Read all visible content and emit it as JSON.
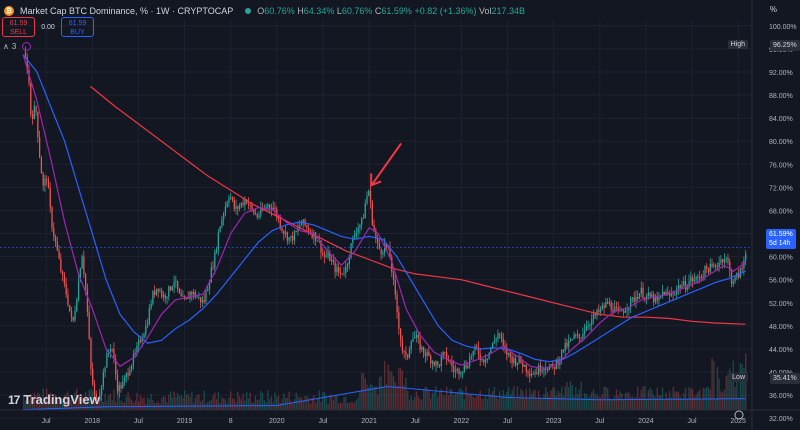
{
  "header": {
    "title": "Market Cap BTC Dominance, % · 1W · CRYPTOCAP",
    "logo_glyph": "₿",
    "ohlc": {
      "o_label": "O",
      "o": "60.76%",
      "h_label": "H",
      "h": "64.34%",
      "l_label": "L",
      "l": "60.76%",
      "c_label": "C",
      "c": "61.59%",
      "change": "+0.82 (+1.36%)",
      "vol_label": "Vol",
      "vol": "217.34B"
    },
    "scale_mode": "%"
  },
  "trade": {
    "sell_price": "61.59",
    "sell_label": "SELL",
    "spread": "0.00",
    "buy_price": "61.59",
    "buy_label": "BUY"
  },
  "indicators": {
    "label": "∧",
    "count": "3"
  },
  "price_labels": {
    "high_label": "High",
    "high_value": "96.25%",
    "low_label": "Low",
    "low_value": "35.41%",
    "current_value": "61.59%",
    "countdown": "5d 14h"
  },
  "watermark": "TradingView",
  "colors": {
    "background": "#131722",
    "up": "#26a69a",
    "down": "#ef5350",
    "ma_long": "#f23645",
    "ma_mid": "#2962ff",
    "ma_short": "#9c27b0",
    "arrow": "#f23645"
  },
  "chart_data": {
    "type": "candlestick",
    "title": "Market Cap BTC Dominance, % · 1W · CRYPTOCAP",
    "ylim": [
      31,
      101
    ],
    "y_ticks": [
      "100.00%",
      "96.00%",
      "92.00%",
      "88.00%",
      "84.00%",
      "80.00%",
      "76.00%",
      "72.00%",
      "68.00%",
      "64.00%",
      "60.00%",
      "56.00%",
      "52.00%",
      "48.00%",
      "44.00%",
      "40.00%",
      "36.00%",
      "32.00%"
    ],
    "x_ticks": [
      "Jul",
      "2018",
      "Jul",
      "2019",
      "8",
      "2020",
      "Jul",
      "2021",
      "Jul",
      "2022",
      "Jul",
      "2023",
      "Jul",
      "2024",
      "Jul",
      "2025"
    ],
    "price_path": [
      [
        2017.25,
        95.5
      ],
      [
        2017.3,
        92
      ],
      [
        2017.33,
        84
      ],
      [
        2017.38,
        86
      ],
      [
        2017.42,
        78
      ],
      [
        2017.46,
        72
      ],
      [
        2017.5,
        74
      ],
      [
        2017.55,
        66
      ],
      [
        2017.6,
        62
      ],
      [
        2017.66,
        57
      ],
      [
        2017.72,
        53
      ],
      [
        2017.78,
        48
      ],
      [
        2017.84,
        55
      ],
      [
        2017.88,
        61
      ],
      [
        2017.93,
        53
      ],
      [
        2017.98,
        40
      ],
      [
        2018.03,
        34.5
      ],
      [
        2018.08,
        37
      ],
      [
        2018.14,
        42
      ],
      [
        2018.2,
        45
      ],
      [
        2018.27,
        37
      ],
      [
        2018.33,
        38
      ],
      [
        2018.4,
        41
      ],
      [
        2018.46,
        43
      ],
      [
        2018.52,
        46
      ],
      [
        2018.58,
        48
      ],
      [
        2018.64,
        53
      ],
      [
        2018.7,
        55
      ],
      [
        2018.76,
        53
      ],
      [
        2018.82,
        54
      ],
      [
        2018.88,
        56
      ],
      [
        2018.94,
        53
      ],
      [
        2019.0,
        52
      ],
      [
        2019.06,
        54
      ],
      [
        2019.13,
        53
      ],
      [
        2019.2,
        52
      ],
      [
        2019.26,
        56
      ],
      [
        2019.32,
        60
      ],
      [
        2019.37,
        65
      ],
      [
        2019.42,
        68
      ],
      [
        2019.48,
        71
      ],
      [
        2019.54,
        68
      ],
      [
        2019.6,
        69
      ],
      [
        2019.66,
        70
      ],
      [
        2019.72,
        68
      ],
      [
        2019.78,
        67
      ],
      [
        2019.84,
        68
      ],
      [
        2019.9,
        69
      ],
      [
        2019.96,
        68.5
      ],
      [
        2020.02,
        66
      ],
      [
        2020.08,
        64
      ],
      [
        2020.14,
        63
      ],
      [
        2020.2,
        64
      ],
      [
        2020.26,
        66
      ],
      [
        2020.32,
        65
      ],
      [
        2020.38,
        64
      ],
      [
        2020.44,
        63
      ],
      [
        2020.5,
        60
      ],
      [
        2020.56,
        60
      ],
      [
        2020.62,
        58
      ],
      [
        2020.68,
        57
      ],
      [
        2020.74,
        58
      ],
      [
        2020.8,
        62
      ],
      [
        2020.86,
        65
      ],
      [
        2020.92,
        66
      ],
      [
        2020.96,
        70
      ],
      [
        2020.99,
        71.5
      ],
      [
        2021.03,
        66
      ],
      [
        2021.08,
        62
      ],
      [
        2021.12,
        61
      ],
      [
        2021.17,
        62
      ],
      [
        2021.22,
        60
      ],
      [
        2021.26,
        55
      ],
      [
        2021.3,
        50
      ],
      [
        2021.35,
        44
      ],
      [
        2021.4,
        42
      ],
      [
        2021.45,
        46
      ],
      [
        2021.5,
        46
      ],
      [
        2021.56,
        44
      ],
      [
        2021.62,
        43
      ],
      [
        2021.68,
        42
      ],
      [
        2021.74,
        41
      ],
      [
        2021.8,
        43
      ],
      [
        2021.86,
        42
      ],
      [
        2021.92,
        40
      ],
      [
        2021.98,
        40.5
      ],
      [
        2022.04,
        41
      ],
      [
        2022.1,
        43
      ],
      [
        2022.16,
        44
      ],
      [
        2022.22,
        42
      ],
      [
        2022.28,
        43
      ],
      [
        2022.34,
        45
      ],
      [
        2022.4,
        47
      ],
      [
        2022.45,
        44
      ],
      [
        2022.5,
        43
      ],
      [
        2022.56,
        42
      ],
      [
        2022.62,
        42
      ],
      [
        2022.68,
        41
      ],
      [
        2022.74,
        40
      ],
      [
        2022.8,
        40
      ],
      [
        2022.86,
        41
      ],
      [
        2022.92,
        41
      ],
      [
        2022.98,
        40.5
      ],
      [
        2023.04,
        42
      ],
      [
        2023.1,
        44
      ],
      [
        2023.16,
        45
      ],
      [
        2023.22,
        46
      ],
      [
        2023.28,
        46
      ],
      [
        2023.34,
        48
      ],
      [
        2023.4,
        49
      ],
      [
        2023.46,
        50
      ],
      [
        2023.52,
        51
      ],
      [
        2023.58,
        52
      ],
      [
        2023.64,
        51
      ],
      [
        2023.7,
        50
      ],
      [
        2023.76,
        51
      ],
      [
        2023.82,
        52
      ],
      [
        2023.88,
        53
      ],
      [
        2023.94,
        54
      ],
      [
        2024.0,
        53
      ],
      [
        2024.06,
        53
      ],
      [
        2024.12,
        52
      ],
      [
        2024.18,
        54
      ],
      [
        2024.24,
        53
      ],
      [
        2024.3,
        54
      ],
      [
        2024.36,
        55
      ],
      [
        2024.42,
        55
      ],
      [
        2024.48,
        56
      ],
      [
        2024.54,
        56
      ],
      [
        2024.6,
        57
      ],
      [
        2024.66,
        58
      ],
      [
        2024.72,
        58
      ],
      [
        2024.78,
        59
      ],
      [
        2024.84,
        60
      ],
      [
        2024.88,
        59
      ],
      [
        2024.92,
        56
      ],
      [
        2024.96,
        56
      ],
      [
        2025.0,
        57
      ],
      [
        2025.04,
        58
      ],
      [
        2025.08,
        61.59
      ]
    ],
    "ma_200": [
      [
        2017.98,
        89.5
      ],
      [
        2018.25,
        86
      ],
      [
        2018.5,
        83
      ],
      [
        2018.75,
        80
      ],
      [
        2019.0,
        77
      ],
      [
        2019.25,
        74
      ],
      [
        2019.5,
        71.5
      ],
      [
        2019.75,
        69
      ],
      [
        2020.0,
        67
      ],
      [
        2020.25,
        65
      ],
      [
        2020.5,
        63
      ],
      [
        2020.75,
        61
      ],
      [
        2021.0,
        59.5
      ],
      [
        2021.25,
        58
      ],
      [
        2021.5,
        57
      ],
      [
        2021.75,
        56.5
      ],
      [
        2022.0,
        56
      ],
      [
        2022.25,
        55
      ],
      [
        2022.5,
        54
      ],
      [
        2022.75,
        53
      ],
      [
        2023.0,
        52
      ],
      [
        2023.25,
        51
      ],
      [
        2023.5,
        50
      ],
      [
        2023.75,
        49.5
      ],
      [
        2024.0,
        49.5
      ],
      [
        2024.25,
        49.3
      ],
      [
        2024.5,
        48.8
      ],
      [
        2024.75,
        48.5
      ],
      [
        2025.08,
        48.3
      ]
    ],
    "ma_blue": [
      [
        2017.25,
        95
      ],
      [
        2017.4,
        92
      ],
      [
        2017.55,
        86
      ],
      [
        2017.7,
        80
      ],
      [
        2017.85,
        72
      ],
      [
        2018.0,
        64
      ],
      [
        2018.15,
        56
      ],
      [
        2018.3,
        50
      ],
      [
        2018.45,
        47
      ],
      [
        2018.6,
        45
      ],
      [
        2018.75,
        45.5
      ],
      [
        2018.9,
        47.5
      ],
      [
        2019.05,
        49
      ],
      [
        2019.2,
        51
      ],
      [
        2019.35,
        53.5
      ],
      [
        2019.5,
        56.5
      ],
      [
        2019.65,
        59.5
      ],
      [
        2019.8,
        62.5
      ],
      [
        2019.95,
        64.5
      ],
      [
        2020.1,
        65.5
      ],
      [
        2020.25,
        66
      ],
      [
        2020.4,
        65.5
      ],
      [
        2020.55,
        64.5
      ],
      [
        2020.7,
        63.5
      ],
      [
        2020.85,
        63
      ],
      [
        2021.0,
        63.5
      ],
      [
        2021.15,
        63
      ],
      [
        2021.3,
        60
      ],
      [
        2021.45,
        56
      ],
      [
        2021.6,
        52
      ],
      [
        2021.75,
        48
      ],
      [
        2021.9,
        45.5
      ],
      [
        2022.05,
        44.5
      ],
      [
        2022.2,
        44
      ],
      [
        2022.35,
        44.2
      ],
      [
        2022.5,
        44
      ],
      [
        2022.65,
        43.2
      ],
      [
        2022.8,
        42.2
      ],
      [
        2022.95,
        41.8
      ],
      [
        2023.1,
        42.2
      ],
      [
        2023.25,
        43.5
      ],
      [
        2023.4,
        45
      ],
      [
        2023.55,
        46.5
      ],
      [
        2023.7,
        48
      ],
      [
        2023.85,
        49.5
      ],
      [
        2024.0,
        50.5
      ],
      [
        2024.15,
        51.5
      ],
      [
        2024.3,
        52.5
      ],
      [
        2024.45,
        53.5
      ],
      [
        2024.6,
        54.5
      ],
      [
        2024.75,
        55.5
      ],
      [
        2024.9,
        56.2
      ],
      [
        2025.08,
        57.5
      ]
    ],
    "ma_purple": [
      [
        2017.25,
        95
      ],
      [
        2017.4,
        87
      ],
      [
        2017.55,
        77
      ],
      [
        2017.7,
        66
      ],
      [
        2017.85,
        57
      ],
      [
        2018.0,
        51
      ],
      [
        2018.15,
        44
      ],
      [
        2018.3,
        41
      ],
      [
        2018.45,
        42.5
      ],
      [
        2018.6,
        46
      ],
      [
        2018.75,
        50
      ],
      [
        2018.9,
        52.5
      ],
      [
        2019.05,
        53
      ],
      [
        2019.2,
        53.5
      ],
      [
        2019.35,
        58
      ],
      [
        2019.5,
        64
      ],
      [
        2019.65,
        67.5
      ],
      [
        2019.8,
        68.5
      ],
      [
        2019.95,
        68.2
      ],
      [
        2020.1,
        66
      ],
      [
        2020.25,
        64.5
      ],
      [
        2020.4,
        64
      ],
      [
        2020.55,
        61
      ],
      [
        2020.7,
        58.5
      ],
      [
        2020.85,
        61
      ],
      [
        2021.0,
        65
      ],
      [
        2021.1,
        64
      ],
      [
        2021.25,
        59
      ],
      [
        2021.4,
        51
      ],
      [
        2021.55,
        46.5
      ],
      [
        2021.7,
        43.5
      ],
      [
        2021.85,
        42.2
      ],
      [
        2022.0,
        41.2
      ],
      [
        2022.15,
        42
      ],
      [
        2022.3,
        43
      ],
      [
        2022.45,
        44.5
      ],
      [
        2022.6,
        42.8
      ],
      [
        2022.75,
        41
      ],
      [
        2022.9,
        40.6
      ],
      [
        2023.05,
        41.5
      ],
      [
        2023.2,
        44
      ],
      [
        2023.35,
        46
      ],
      [
        2023.5,
        48.5
      ],
      [
        2023.65,
        50.5
      ],
      [
        2023.8,
        51
      ],
      [
        2023.95,
        52.5
      ],
      [
        2024.1,
        53
      ],
      [
        2024.25,
        53.5
      ],
      [
        2024.4,
        54.5
      ],
      [
        2024.55,
        55.5
      ],
      [
        2024.7,
        57
      ],
      [
        2024.85,
        58.5
      ],
      [
        2024.95,
        57.5
      ],
      [
        2025.08,
        59
      ]
    ],
    "annotation": {
      "type": "arrow",
      "points_to": [
        2020.99,
        72
      ]
    }
  }
}
